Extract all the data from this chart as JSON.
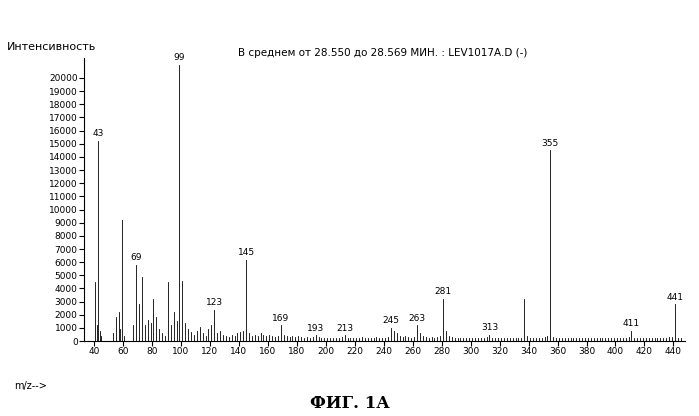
{
  "title": "В среднем от 28.550 до 28.569 МИН. : LEV1017A.D (-)",
  "ylabel": "Интенсивность",
  "xlabel": "m/z-->",
  "caption": "ФИГ. 1А",
  "xlim": [
    33,
    448
  ],
  "ylim": [
    0,
    21500
  ],
  "yticks": [
    0,
    1000,
    2000,
    3000,
    4000,
    5000,
    6000,
    7000,
    8000,
    9000,
    10000,
    11000,
    12000,
    13000,
    14000,
    15000,
    16000,
    17000,
    18000,
    19000,
    20000
  ],
  "xticks": [
    40,
    60,
    80,
    100,
    120,
    140,
    160,
    180,
    200,
    220,
    240,
    260,
    280,
    300,
    320,
    340,
    360,
    380,
    400,
    420,
    440
  ],
  "labeled_peaks": [
    {
      "mz": 43,
      "intensity": 15200,
      "label": "43"
    },
    {
      "mz": 69,
      "intensity": 5800,
      "label": "69"
    },
    {
      "mz": 99,
      "intensity": 21000,
      "label": "99"
    },
    {
      "mz": 123,
      "intensity": 2400,
      "label": "123"
    },
    {
      "mz": 145,
      "intensity": 6200,
      "label": "145"
    },
    {
      "mz": 169,
      "intensity": 1200,
      "label": "169"
    },
    {
      "mz": 193,
      "intensity": 450,
      "label": "193"
    },
    {
      "mz": 213,
      "intensity": 450,
      "label": "213"
    },
    {
      "mz": 245,
      "intensity": 1000,
      "label": "245"
    },
    {
      "mz": 263,
      "intensity": 1200,
      "label": "263"
    },
    {
      "mz": 281,
      "intensity": 3200,
      "label": "281"
    },
    {
      "mz": 313,
      "intensity": 500,
      "label": "313"
    },
    {
      "mz": 355,
      "intensity": 14500,
      "label": "355"
    },
    {
      "mz": 411,
      "intensity": 800,
      "label": "411"
    },
    {
      "mz": 441,
      "intensity": 2800,
      "label": "441"
    }
  ],
  "extra_peaks": [
    {
      "mz": 41,
      "intensity": 4500
    },
    {
      "mz": 42,
      "intensity": 1200
    },
    {
      "mz": 44,
      "intensity": 800
    },
    {
      "mz": 45,
      "intensity": 400
    },
    {
      "mz": 53,
      "intensity": 600
    },
    {
      "mz": 55,
      "intensity": 1800
    },
    {
      "mz": 57,
      "intensity": 2200
    },
    {
      "mz": 58,
      "intensity": 900
    },
    {
      "mz": 59,
      "intensity": 9200
    },
    {
      "mz": 61,
      "intensity": 400
    },
    {
      "mz": 67,
      "intensity": 1200
    },
    {
      "mz": 71,
      "intensity": 2800
    },
    {
      "mz": 73,
      "intensity": 4900
    },
    {
      "mz": 75,
      "intensity": 1200
    },
    {
      "mz": 77,
      "intensity": 1600
    },
    {
      "mz": 79,
      "intensity": 1400
    },
    {
      "mz": 81,
      "intensity": 3200
    },
    {
      "mz": 83,
      "intensity": 1800
    },
    {
      "mz": 85,
      "intensity": 900
    },
    {
      "mz": 87,
      "intensity": 600
    },
    {
      "mz": 89,
      "intensity": 400
    },
    {
      "mz": 91,
      "intensity": 4500
    },
    {
      "mz": 93,
      "intensity": 1200
    },
    {
      "mz": 95,
      "intensity": 2200
    },
    {
      "mz": 97,
      "intensity": 1500
    },
    {
      "mz": 101,
      "intensity": 4600
    },
    {
      "mz": 103,
      "intensity": 1400
    },
    {
      "mz": 105,
      "intensity": 900
    },
    {
      "mz": 107,
      "intensity": 700
    },
    {
      "mz": 109,
      "intensity": 500
    },
    {
      "mz": 111,
      "intensity": 800
    },
    {
      "mz": 113,
      "intensity": 1100
    },
    {
      "mz": 115,
      "intensity": 600
    },
    {
      "mz": 117,
      "intensity": 400
    },
    {
      "mz": 119,
      "intensity": 900
    },
    {
      "mz": 121,
      "intensity": 1200
    },
    {
      "mz": 125,
      "intensity": 600
    },
    {
      "mz": 127,
      "intensity": 800
    },
    {
      "mz": 129,
      "intensity": 500
    },
    {
      "mz": 131,
      "intensity": 400
    },
    {
      "mz": 133,
      "intensity": 300
    },
    {
      "mz": 135,
      "intensity": 500
    },
    {
      "mz": 137,
      "intensity": 400
    },
    {
      "mz": 139,
      "intensity": 600
    },
    {
      "mz": 141,
      "intensity": 700
    },
    {
      "mz": 143,
      "intensity": 800
    },
    {
      "mz": 147,
      "intensity": 600
    },
    {
      "mz": 149,
      "intensity": 400
    },
    {
      "mz": 151,
      "intensity": 500
    },
    {
      "mz": 153,
      "intensity": 400
    },
    {
      "mz": 155,
      "intensity": 600
    },
    {
      "mz": 157,
      "intensity": 500
    },
    {
      "mz": 159,
      "intensity": 400
    },
    {
      "mz": 161,
      "intensity": 500
    },
    {
      "mz": 163,
      "intensity": 400
    },
    {
      "mz": 165,
      "intensity": 300
    },
    {
      "mz": 167,
      "intensity": 400
    },
    {
      "mz": 171,
      "intensity": 500
    },
    {
      "mz": 173,
      "intensity": 400
    },
    {
      "mz": 175,
      "intensity": 300
    },
    {
      "mz": 177,
      "intensity": 400
    },
    {
      "mz": 179,
      "intensity": 300
    },
    {
      "mz": 181,
      "intensity": 400
    },
    {
      "mz": 183,
      "intensity": 300
    },
    {
      "mz": 185,
      "intensity": 250
    },
    {
      "mz": 187,
      "intensity": 300
    },
    {
      "mz": 189,
      "intensity": 250
    },
    {
      "mz": 191,
      "intensity": 300
    },
    {
      "mz": 195,
      "intensity": 300
    },
    {
      "mz": 197,
      "intensity": 250
    },
    {
      "mz": 199,
      "intensity": 200
    },
    {
      "mz": 201,
      "intensity": 250
    },
    {
      "mz": 203,
      "intensity": 200
    },
    {
      "mz": 205,
      "intensity": 250
    },
    {
      "mz": 207,
      "intensity": 200
    },
    {
      "mz": 209,
      "intensity": 250
    },
    {
      "mz": 211,
      "intensity": 300
    },
    {
      "mz": 215,
      "intensity": 200
    },
    {
      "mz": 217,
      "intensity": 250
    },
    {
      "mz": 219,
      "intensity": 200
    },
    {
      "mz": 221,
      "intensity": 250
    },
    {
      "mz": 223,
      "intensity": 200
    },
    {
      "mz": 225,
      "intensity": 300
    },
    {
      "mz": 227,
      "intensity": 250
    },
    {
      "mz": 229,
      "intensity": 200
    },
    {
      "mz": 231,
      "intensity": 250
    },
    {
      "mz": 233,
      "intensity": 200
    },
    {
      "mz": 235,
      "intensity": 300
    },
    {
      "mz": 237,
      "intensity": 250
    },
    {
      "mz": 239,
      "intensity": 200
    },
    {
      "mz": 241,
      "intensity": 250
    },
    {
      "mz": 243,
      "intensity": 300
    },
    {
      "mz": 247,
      "intensity": 800
    },
    {
      "mz": 249,
      "intensity": 600
    },
    {
      "mz": 251,
      "intensity": 400
    },
    {
      "mz": 253,
      "intensity": 300
    },
    {
      "mz": 255,
      "intensity": 400
    },
    {
      "mz": 257,
      "intensity": 300
    },
    {
      "mz": 259,
      "intensity": 250
    },
    {
      "mz": 261,
      "intensity": 300
    },
    {
      "mz": 265,
      "intensity": 600
    },
    {
      "mz": 267,
      "intensity": 400
    },
    {
      "mz": 269,
      "intensity": 300
    },
    {
      "mz": 271,
      "intensity": 250
    },
    {
      "mz": 273,
      "intensity": 300
    },
    {
      "mz": 275,
      "intensity": 250
    },
    {
      "mz": 277,
      "intensity": 300
    },
    {
      "mz": 279,
      "intensity": 400
    },
    {
      "mz": 283,
      "intensity": 800
    },
    {
      "mz": 285,
      "intensity": 400
    },
    {
      "mz": 287,
      "intensity": 300
    },
    {
      "mz": 289,
      "intensity": 250
    },
    {
      "mz": 291,
      "intensity": 200
    },
    {
      "mz": 293,
      "intensity": 250
    },
    {
      "mz": 295,
      "intensity": 200
    },
    {
      "mz": 297,
      "intensity": 250
    },
    {
      "mz": 299,
      "intensity": 200
    },
    {
      "mz": 301,
      "intensity": 250
    },
    {
      "mz": 303,
      "intensity": 200
    },
    {
      "mz": 305,
      "intensity": 250
    },
    {
      "mz": 307,
      "intensity": 200
    },
    {
      "mz": 309,
      "intensity": 250
    },
    {
      "mz": 311,
      "intensity": 300
    },
    {
      "mz": 315,
      "intensity": 250
    },
    {
      "mz": 317,
      "intensity": 200
    },
    {
      "mz": 319,
      "intensity": 250
    },
    {
      "mz": 321,
      "intensity": 200
    },
    {
      "mz": 323,
      "intensity": 250
    },
    {
      "mz": 325,
      "intensity": 200
    },
    {
      "mz": 327,
      "intensity": 250
    },
    {
      "mz": 329,
      "intensity": 200
    },
    {
      "mz": 331,
      "intensity": 250
    },
    {
      "mz": 333,
      "intensity": 200
    },
    {
      "mz": 335,
      "intensity": 250
    },
    {
      "mz": 337,
      "intensity": 3200
    },
    {
      "mz": 339,
      "intensity": 400
    },
    {
      "mz": 341,
      "intensity": 250
    },
    {
      "mz": 343,
      "intensity": 200
    },
    {
      "mz": 345,
      "intensity": 250
    },
    {
      "mz": 347,
      "intensity": 200
    },
    {
      "mz": 349,
      "intensity": 250
    },
    {
      "mz": 351,
      "intensity": 300
    },
    {
      "mz": 353,
      "intensity": 400
    },
    {
      "mz": 357,
      "intensity": 300
    },
    {
      "mz": 359,
      "intensity": 250
    },
    {
      "mz": 361,
      "intensity": 200
    },
    {
      "mz": 363,
      "intensity": 250
    },
    {
      "mz": 365,
      "intensity": 200
    },
    {
      "mz": 367,
      "intensity": 250
    },
    {
      "mz": 369,
      "intensity": 200
    },
    {
      "mz": 371,
      "intensity": 250
    },
    {
      "mz": 373,
      "intensity": 200
    },
    {
      "mz": 375,
      "intensity": 250
    },
    {
      "mz": 377,
      "intensity": 200
    },
    {
      "mz": 379,
      "intensity": 250
    },
    {
      "mz": 381,
      "intensity": 200
    },
    {
      "mz": 383,
      "intensity": 250
    },
    {
      "mz": 385,
      "intensity": 200
    },
    {
      "mz": 387,
      "intensity": 250
    },
    {
      "mz": 389,
      "intensity": 200
    },
    {
      "mz": 391,
      "intensity": 250
    },
    {
      "mz": 393,
      "intensity": 200
    },
    {
      "mz": 395,
      "intensity": 250
    },
    {
      "mz": 397,
      "intensity": 200
    },
    {
      "mz": 399,
      "intensity": 250
    },
    {
      "mz": 401,
      "intensity": 200
    },
    {
      "mz": 403,
      "intensity": 250
    },
    {
      "mz": 405,
      "intensity": 200
    },
    {
      "mz": 407,
      "intensity": 250
    },
    {
      "mz": 409,
      "intensity": 300
    },
    {
      "mz": 413,
      "intensity": 250
    },
    {
      "mz": 415,
      "intensity": 200
    },
    {
      "mz": 417,
      "intensity": 250
    },
    {
      "mz": 419,
      "intensity": 200
    },
    {
      "mz": 421,
      "intensity": 250
    },
    {
      "mz": 423,
      "intensity": 200
    },
    {
      "mz": 425,
      "intensity": 250
    },
    {
      "mz": 427,
      "intensity": 200
    },
    {
      "mz": 429,
      "intensity": 250
    },
    {
      "mz": 431,
      "intensity": 200
    },
    {
      "mz": 433,
      "intensity": 250
    },
    {
      "mz": 435,
      "intensity": 200
    },
    {
      "mz": 437,
      "intensity": 300
    },
    {
      "mz": 439,
      "intensity": 350
    },
    {
      "mz": 443,
      "intensity": 250
    },
    {
      "mz": 445,
      "intensity": 200
    }
  ],
  "peak_color": "#000000",
  "bg_color": "#ffffff",
  "label_fontsize": 6.5,
  "axis_fontsize": 7,
  "title_fontsize": 7.5,
  "ylabel_fontsize": 8,
  "caption_fontsize": 12
}
